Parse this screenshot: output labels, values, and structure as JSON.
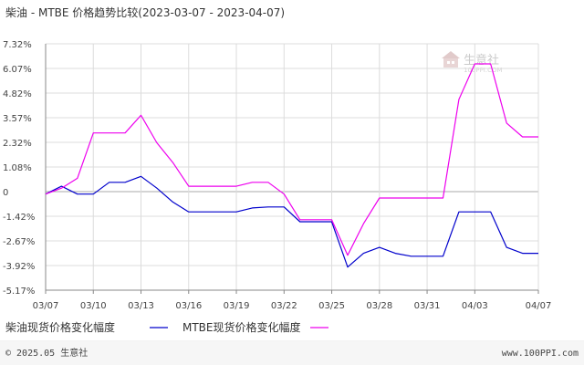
{
  "header": {
    "title": "柴油 - MTBE 价格趋势比较(2023-03-07 - 2023-04-07)"
  },
  "watermark": {
    "name": "生意社",
    "url": "100PPI.COM"
  },
  "footer": {
    "copyright": "© 2025.05 生意社",
    "website": "www.100PPI.com"
  },
  "chart_data": {
    "type": "line",
    "title": "柴油 - MTBE 价格趋势比较(2023-03-07 - 2023-04-07)",
    "ylim": [
      -5.17,
      7.32
    ],
    "y_ticks": [
      "7.32%",
      "6.07%",
      "4.82%",
      "3.57%",
      "2.32%",
      "1.08%",
      "0",
      "-1.42%",
      "-2.67%",
      "-3.92%",
      "-5.17%"
    ],
    "x_ticks": [
      "03/07",
      "03/10",
      "03/13",
      "03/16",
      "03/19",
      "03/22",
      "03/25",
      "03/28",
      "03/31",
      "04/03",
      "04/07"
    ],
    "grid": true,
    "legend_position": "bottom",
    "colors": {
      "series1": "#0000cc",
      "series2": "#ee00ee",
      "grid": "#dcdcdc",
      "axis": "#888888"
    },
    "series": [
      {
        "name": "柴油现货价格变化幅度",
        "x": [
          "03/07",
          "03/08",
          "03/09",
          "03/10",
          "03/11",
          "03/12",
          "03/13",
          "03/14",
          "03/15",
          "03/16",
          "03/17",
          "03/18",
          "03/19",
          "03/20",
          "03/21",
          "03/22",
          "03/23",
          "03/24",
          "03/25",
          "03/26",
          "03/27",
          "03/28",
          "03/29",
          "03/30",
          "03/31",
          "04/01",
          "04/02",
          "04/03",
          "04/04",
          "04/05",
          "04/06",
          "04/07"
        ],
        "values": [
          -0.3,
          0.1,
          -0.3,
          -0.3,
          0.3,
          0.3,
          0.6,
          0.0,
          -0.7,
          -1.2,
          -1.2,
          -1.2,
          -1.2,
          -1.0,
          -0.95,
          -0.95,
          -1.7,
          -1.7,
          -1.7,
          -4.0,
          -3.3,
          -3.0,
          -3.3,
          -3.45,
          -3.45,
          -3.45,
          -1.2,
          -1.2,
          -1.2,
          -3.0,
          -3.3,
          -3.3
        ],
        "color": "#0000cc"
      },
      {
        "name": "MTBE现货价格变化幅度",
        "x": [
          "03/07",
          "03/08",
          "03/09",
          "03/10",
          "03/11",
          "03/12",
          "03/13",
          "03/14",
          "03/15",
          "03/16",
          "03/17",
          "03/18",
          "03/19",
          "03/20",
          "03/21",
          "03/22",
          "03/23",
          "03/24",
          "03/25",
          "03/26",
          "03/27",
          "03/28",
          "03/29",
          "03/30",
          "03/31",
          "04/01",
          "04/02",
          "04/03",
          "04/04",
          "04/05",
          "04/06",
          "04/07"
        ],
        "values": [
          -0.3,
          0.0,
          0.5,
          2.8,
          2.8,
          2.8,
          3.7,
          2.3,
          1.3,
          0.1,
          0.1,
          0.1,
          0.1,
          0.3,
          0.3,
          -0.3,
          -1.6,
          -1.6,
          -1.6,
          -3.4,
          -1.8,
          -0.5,
          -0.5,
          -0.5,
          -0.5,
          -0.5,
          4.5,
          6.3,
          6.3,
          3.3,
          2.6,
          2.6
        ],
        "color": "#ee00ee"
      }
    ]
  }
}
